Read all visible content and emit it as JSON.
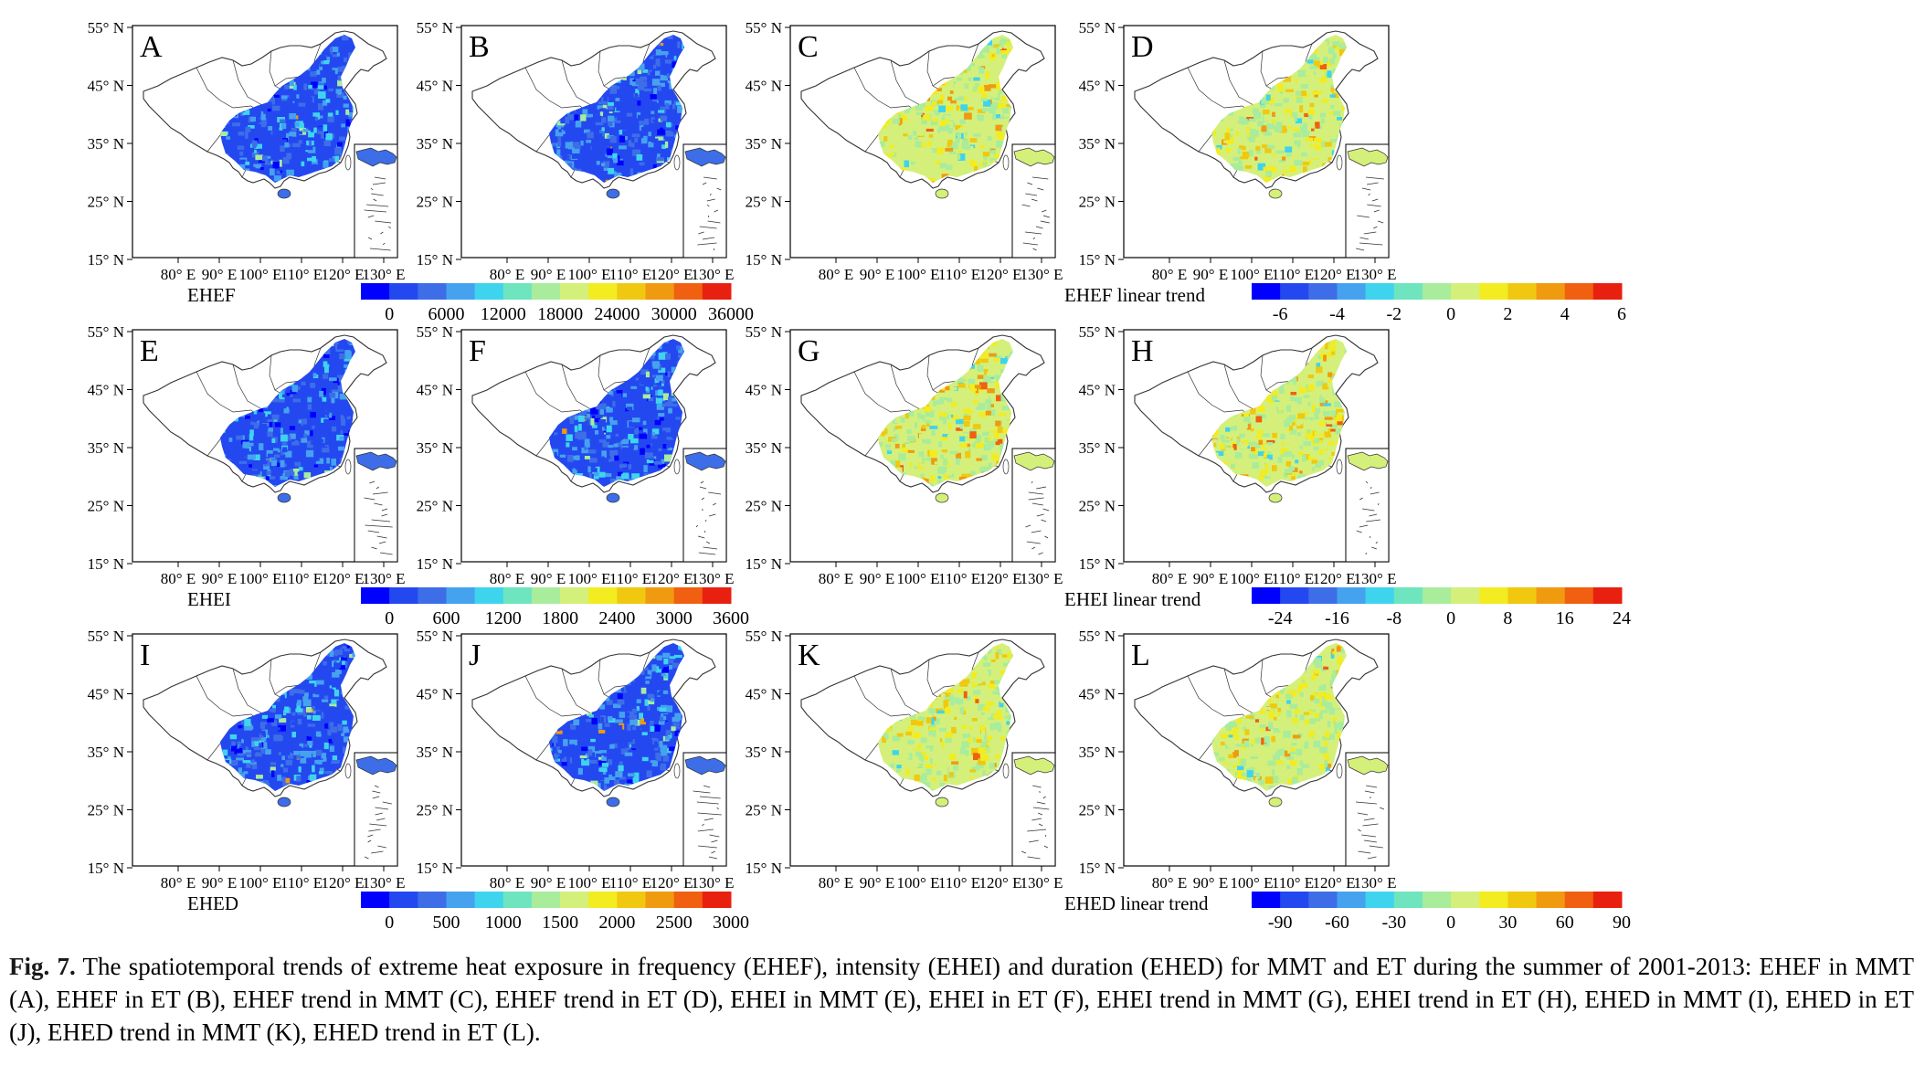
{
  "figure": {
    "lat_labels": [
      "55° N",
      "45° N",
      "35° N",
      "25° N",
      "15° N"
    ],
    "lon_labels": [
      "80° E",
      "90° E",
      "100° E",
      "110° E",
      "120° E",
      "130° E"
    ],
    "panels": [
      {
        "id": "A",
        "scheme": "abs"
      },
      {
        "id": "B",
        "scheme": "abs"
      },
      {
        "id": "C",
        "scheme": "trend"
      },
      {
        "id": "D",
        "scheme": "trend"
      },
      {
        "id": "E",
        "scheme": "abs"
      },
      {
        "id": "F",
        "scheme": "abs"
      },
      {
        "id": "G",
        "scheme": "trend"
      },
      {
        "id": "H",
        "scheme": "trend"
      },
      {
        "id": "I",
        "scheme": "abs"
      },
      {
        "id": "J",
        "scheme": "abs"
      },
      {
        "id": "K",
        "scheme": "trend"
      },
      {
        "id": "L",
        "scheme": "trend"
      }
    ],
    "colorbars": [
      {
        "title": "EHEF",
        "ticks": [
          "0",
          "6000",
          "12000",
          "18000",
          "24000",
          "30000",
          "36000"
        ]
      },
      {
        "title": "EHEF linear trend",
        "ticks": [
          "-6",
          "-4",
          "-2",
          "0",
          "2",
          "4",
          "6"
        ]
      },
      {
        "title": "EHEI",
        "ticks": [
          "0",
          "600",
          "1200",
          "1800",
          "2400",
          "3000",
          "3600"
        ]
      },
      {
        "title": "EHEI linear trend",
        "ticks": [
          "-24",
          "-16",
          "-8",
          "0",
          "8",
          "16",
          "24"
        ]
      },
      {
        "title": "EHED",
        "ticks": [
          "0",
          "500",
          "1000",
          "1500",
          "2000",
          "2500",
          "3000"
        ]
      },
      {
        "title": "EHED linear trend",
        "ticks": [
          "-90",
          "-60",
          "-30",
          "0",
          "30",
          "60",
          "90"
        ]
      }
    ],
    "palette": [
      "#0000ff",
      "#2448f0",
      "#3d6ee8",
      "#45a2ef",
      "#3ed4ee",
      "#6ee4bf",
      "#a8ec9c",
      "#d4f07a",
      "#f2ec20",
      "#f0c810",
      "#f09a10",
      "#f06010",
      "#e82010"
    ]
  },
  "caption": {
    "label": "Fig. 7.",
    "text": "The spatiotemporal trends of extreme heat exposure in frequency (EHEF), intensity (EHEI) and duration (EHED) for MMT and ET during the summer of 2001-2013: EHEF in MMT (A), EHEF in ET (B), EHEF trend in MMT (C), EHEF trend in ET (D), EHEI in MMT (E), EHEI in ET (F), EHEI trend in MMT (G), EHEI trend in ET (H), EHED in MMT (I), EHED in ET (J), EHED trend in MMT (K), EHED trend in ET (L)."
  }
}
